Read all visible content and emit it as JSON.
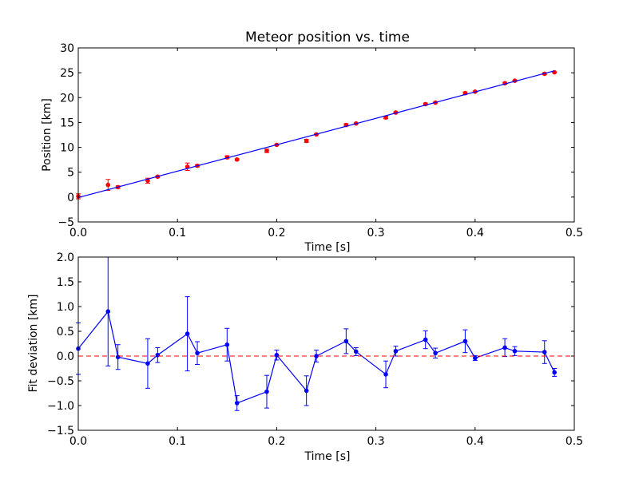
{
  "chart_data": [
    {
      "type": "scatter",
      "title": "Meteor position vs. time",
      "xlabel": "Time [s]",
      "ylabel": "Position [km]",
      "xlim": [
        0.0,
        0.5
      ],
      "ylim": [
        -5,
        30
      ],
      "xticks": [
        0.0,
        0.1,
        0.2,
        0.3,
        0.4,
        0.5
      ],
      "xtick_labels": [
        "0.0",
        "0.1",
        "0.2",
        "0.3",
        "0.4",
        "0.5"
      ],
      "yticks": [
        -5,
        0,
        5,
        10,
        15,
        20,
        25,
        30
      ],
      "ytick_labels": [
        "−5",
        "0",
        "5",
        "10",
        "15",
        "20",
        "25",
        "30"
      ],
      "grid": false,
      "series": [
        {
          "kind": "errorbar-points",
          "color": "#ff0000",
          "x": [
            0.0,
            0.03,
            0.04,
            0.07,
            0.08,
            0.11,
            0.12,
            0.15,
            0.16,
            0.19,
            0.2,
            0.23,
            0.24,
            0.27,
            0.28,
            0.31,
            0.32,
            0.35,
            0.36,
            0.39,
            0.4,
            0.43,
            0.44,
            0.47,
            0.48
          ],
          "y": [
            0.15,
            2.45,
            2.0,
            3.3,
            4.1,
            6.1,
            6.3,
            8.0,
            7.55,
            9.3,
            10.5,
            11.3,
            12.6,
            14.5,
            14.8,
            16.0,
            17.0,
            18.7,
            19.0,
            20.9,
            21.2,
            22.9,
            23.4,
            24.8,
            25.1
          ],
          "err": [
            0.5,
            1.1,
            0.25,
            0.5,
            0.15,
            0.75,
            0.2,
            0.3,
            0.15,
            0.35,
            0.1,
            0.3,
            0.1,
            0.25,
            0.1,
            0.25,
            0.1,
            0.2,
            0.1,
            0.25,
            0.08,
            0.2,
            0.1,
            0.2,
            0.08
          ]
        },
        {
          "kind": "fit-line",
          "color": "#0000ff",
          "x": [
            0.0,
            0.48
          ],
          "y": [
            -0.1,
            25.4
          ]
        }
      ]
    },
    {
      "type": "line",
      "title": "",
      "xlabel": "Time [s]",
      "ylabel": "Fit deviation [km]",
      "xlim": [
        0.0,
        0.5
      ],
      "ylim": [
        -1.5,
        2.0
      ],
      "xticks": [
        0.0,
        0.1,
        0.2,
        0.3,
        0.4,
        0.5
      ],
      "xtick_labels": [
        "0.0",
        "0.1",
        "0.2",
        "0.3",
        "0.4",
        "0.5"
      ],
      "yticks": [
        -1.5,
        -1.0,
        -0.5,
        0.0,
        0.5,
        1.0,
        1.5,
        2.0
      ],
      "ytick_labels": [
        "−1.5",
        "−1.0",
        "−0.5",
        "0.0",
        "0.5",
        "1.0",
        "1.5",
        "2.0"
      ],
      "grid": false,
      "series": [
        {
          "kind": "errorbar-line",
          "color": "#0000ff",
          "x": [
            0.0,
            0.03,
            0.04,
            0.07,
            0.08,
            0.11,
            0.12,
            0.15,
            0.16,
            0.19,
            0.2,
            0.23,
            0.24,
            0.27,
            0.28,
            0.31,
            0.32,
            0.35,
            0.36,
            0.39,
            0.4,
            0.43,
            0.44,
            0.47,
            0.48
          ],
          "y": [
            0.15,
            0.9,
            -0.02,
            -0.15,
            0.02,
            0.45,
            0.06,
            0.23,
            -0.95,
            -0.72,
            0.02,
            -0.7,
            0.0,
            0.3,
            0.09,
            -0.37,
            0.1,
            0.33,
            0.06,
            0.3,
            -0.04,
            0.17,
            0.1,
            0.08,
            -0.33
          ],
          "err": [
            0.52,
            1.1,
            0.25,
            0.5,
            0.15,
            0.75,
            0.23,
            0.33,
            0.15,
            0.33,
            0.1,
            0.3,
            0.12,
            0.25,
            0.08,
            0.27,
            0.1,
            0.18,
            0.1,
            0.23,
            0.05,
            0.18,
            0.09,
            0.23,
            0.08
          ]
        },
        {
          "kind": "reference-line",
          "color": "#ff0000",
          "style": "dashed",
          "y": 0.0
        }
      ]
    }
  ]
}
